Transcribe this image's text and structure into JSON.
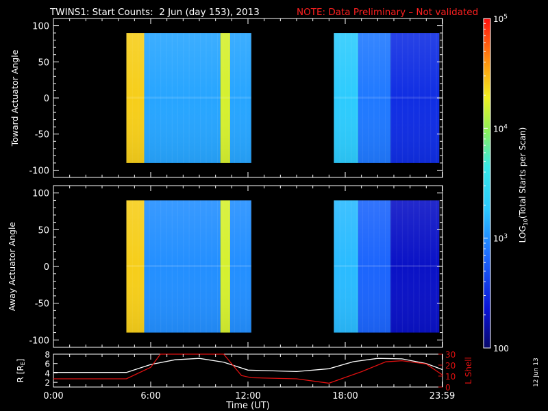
{
  "header": {
    "title": "TWINS1: Start Counts:  2 Jun (day 153), 2013",
    "note": "NOTE: Data Preliminary – Not validated"
  },
  "colors": {
    "background": "#000000",
    "axes": "#ffffff",
    "note": "#ff2020",
    "r_line": "#ffffff",
    "l_shell_line": "#e01010"
  },
  "colorbar": {
    "label": "LOG10(Total Starts per Scan)",
    "ticks": [
      {
        "value": 100,
        "label": "100"
      },
      {
        "value": 1000,
        "label": "10^3"
      },
      {
        "value": 10000,
        "label": "10^4"
      },
      {
        "value": 100000,
        "label": "10^5"
      }
    ],
    "range": [
      100,
      100000
    ],
    "scale": "log"
  },
  "stamp": "12 Jun 13",
  "xaxis": {
    "label": "Time (UT)",
    "ticks": [
      {
        "hour": 0,
        "label": "0:00"
      },
      {
        "hour": 6,
        "label": "6:00"
      },
      {
        "hour": 12,
        "label": "12:00"
      },
      {
        "hour": 18,
        "label": "18:00"
      },
      {
        "hour": 23.98,
        "label": "23:59"
      }
    ],
    "range_hours": [
      0,
      24
    ]
  },
  "chart_data": [
    {
      "type": "heatmap",
      "ylabel": "Toward Actuator Angle",
      "ylim": [
        -110,
        110
      ],
      "yticks": [
        100,
        50,
        0,
        -50,
        -100
      ],
      "angle_range": [
        -90,
        90
      ],
      "data_intervals_hours": [
        [
          4.5,
          12.2
        ],
        [
          17.3,
          24.0
        ]
      ],
      "approx_log10_counts": [
        {
          "hours": [
            4.5,
            5.6
          ],
          "value": 4.4
        },
        {
          "hours": [
            5.6,
            10.3
          ],
          "value": 3.1
        },
        {
          "hours": [
            10.3,
            10.9
          ],
          "value": 4.2
        },
        {
          "hours": [
            10.9,
            12.2
          ],
          "value": 3.1
        },
        {
          "hours": [
            17.3,
            18.8
          ],
          "value": 3.3
        },
        {
          "hours": [
            18.8,
            20.8
          ],
          "value": 2.9
        },
        {
          "hours": [
            20.8,
            23.8
          ],
          "value": 2.5
        }
      ]
    },
    {
      "type": "heatmap",
      "ylabel": "Away Actuator Angle",
      "ylim": [
        -110,
        110
      ],
      "yticks": [
        100,
        50,
        0,
        -50,
        -100
      ],
      "angle_range": [
        -90,
        90
      ],
      "data_intervals_hours": [
        [
          4.5,
          12.2
        ],
        [
          17.3,
          24.0
        ]
      ],
      "approx_log10_counts": [
        {
          "hours": [
            4.5,
            5.6
          ],
          "value": 4.4
        },
        {
          "hours": [
            5.6,
            10.3
          ],
          "value": 3.0
        },
        {
          "hours": [
            10.3,
            10.9
          ],
          "value": 4.2
        },
        {
          "hours": [
            10.9,
            12.2
          ],
          "value": 3.0
        },
        {
          "hours": [
            17.3,
            18.8
          ],
          "value": 3.2
        },
        {
          "hours": [
            18.8,
            20.8
          ],
          "value": 2.8
        },
        {
          "hours": [
            20.8,
            23.8
          ],
          "value": 2.3
        }
      ]
    },
    {
      "type": "line",
      "ylabel": "R [RE]",
      "y2label": "L Shell",
      "ylim": [
        1,
        8
      ],
      "yticks": [
        2,
        4,
        6,
        8
      ],
      "y2lim": [
        0,
        30
      ],
      "y2ticks": [
        0,
        10,
        20,
        30
      ],
      "series": [
        {
          "name": "R [RE]",
          "axis": "left",
          "x": [
            0,
            4.5,
            6,
            7.5,
            9,
            10.5,
            12,
            15,
            17,
            18.5,
            20,
            21.5,
            23,
            24
          ],
          "y": [
            4.1,
            4.1,
            5.8,
            6.8,
            7.1,
            6.3,
            4.6,
            4.3,
            4.9,
            6.4,
            7.1,
            7.0,
            6.0,
            4.7
          ]
        },
        {
          "name": "L Shell",
          "axis": "right",
          "x": [
            0,
            4.5,
            6,
            6.6,
            10.5,
            11.6,
            12.2,
            15,
            17,
            19,
            20.5,
            21.5,
            23,
            24
          ],
          "y": [
            7.5,
            7.5,
            18,
            30,
            30,
            10.5,
            8.5,
            7.5,
            3.5,
            14,
            23,
            24,
            21,
            11
          ]
        }
      ]
    }
  ]
}
